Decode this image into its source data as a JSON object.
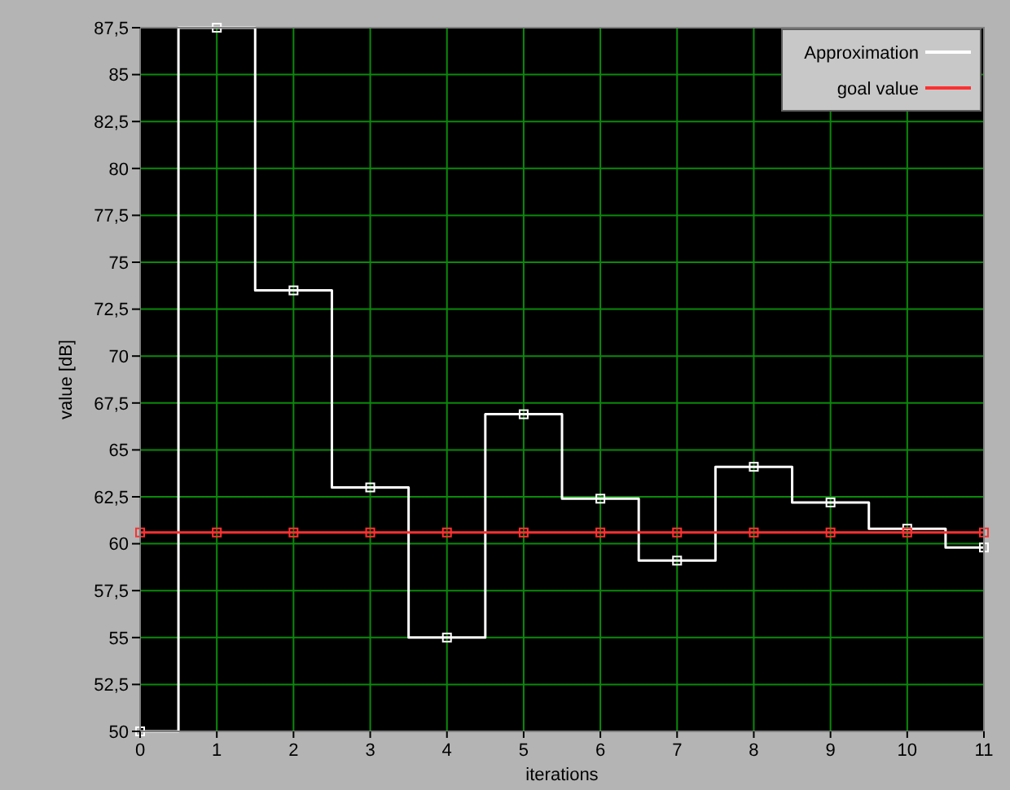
{
  "chart_data": {
    "type": "line",
    "xlabel": "iterations",
    "ylabel": "value [dB]",
    "x": [
      0,
      1,
      2,
      3,
      4,
      5,
      6,
      7,
      8,
      9,
      10,
      11
    ],
    "series": [
      {
        "name": "Approximation",
        "type": "step",
        "color": "#ffffff",
        "marker": "square",
        "values": [
          50,
          87.5,
          73.5,
          63,
          55,
          66.9,
          62.4,
          59.1,
          64.1,
          62.2,
          60.8,
          59.8
        ]
      },
      {
        "name": "goal value",
        "color": "#ff3030",
        "marker": "square",
        "values": [
          60.6,
          60.6,
          60.6,
          60.6,
          60.6,
          60.6,
          60.6,
          60.6,
          60.6,
          60.6,
          60.6,
          60.6
        ]
      }
    ],
    "xlim": [
      0,
      11
    ],
    "xticks": [
      0,
      1,
      2,
      3,
      4,
      5,
      6,
      7,
      8,
      9,
      10,
      11
    ],
    "ylim": [
      50,
      87.5
    ],
    "yticks": [
      50,
      {
        "value": 52.5,
        "label": "52,5"
      },
      55,
      {
        "value": 57.5,
        "label": "57,5"
      },
      60,
      {
        "value": 62.5,
        "label": "62,5"
      },
      65,
      {
        "value": 67.5,
        "label": "67,5"
      },
      70,
      {
        "value": 72.5,
        "label": "72,5"
      },
      75,
      {
        "value": 77.5,
        "label": "77,5"
      },
      80,
      {
        "value": 82.5,
        "label": "82,5"
      },
      85,
      {
        "value": 87.5,
        "label": "87,5"
      }
    ],
    "grid": true,
    "legend": "top right"
  }
}
